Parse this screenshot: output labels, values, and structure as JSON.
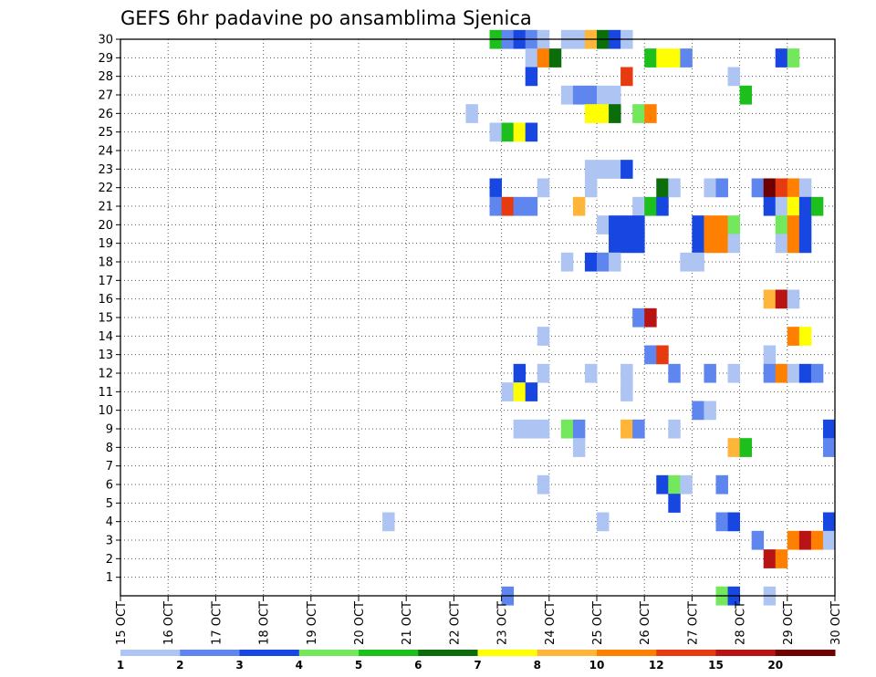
{
  "chart_data": {
    "type": "heatmap",
    "title": "GEFS 6hr padavine po ansamblima Sjenica",
    "x_labels": [
      "15 OCT",
      "16 OCT",
      "17 OCT",
      "18 OCT",
      "19 OCT",
      "20 OCT",
      "21 OCT",
      "22 OCT",
      "23 OCT",
      "24 OCT",
      "25 OCT",
      "26 OCT",
      "27 OCT",
      "28 OCT",
      "29 OCT",
      "30 OCT"
    ],
    "x_range": [
      "15 OCT",
      "30 OCT"
    ],
    "x_step_hours": 6,
    "y_labels": [
      "1",
      "2",
      "3",
      "4",
      "5",
      "6",
      "7",
      "8",
      "9",
      "10",
      "11",
      "12",
      "13",
      "14",
      "15",
      "16",
      "17",
      "18",
      "19",
      "20",
      "21",
      "22",
      "23",
      "24",
      "25",
      "26",
      "27",
      "28",
      "29",
      "30"
    ],
    "y_range": [
      0,
      30
    ],
    "grid": true,
    "legend_position": "bottom",
    "colorbar": {
      "labels": [
        "1",
        "2",
        "3",
        "4",
        "5",
        "6",
        "7",
        "8",
        "10",
        "12",
        "15",
        "20"
      ],
      "colors": [
        "#aec4f2",
        "#5f86ee",
        "#1747e0",
        "#74e85c",
        "#1dbf1d",
        "#0b6e0b",
        "#ffff00",
        "#ffb43a",
        "#ff7f00",
        "#e63b10",
        "#b81414",
        "#6e0000"
      ]
    },
    "cells": [
      {
        "m": 30,
        "t": "22 OCT 18Z",
        "v": 5
      },
      {
        "m": 30,
        "t": "23 OCT 00Z",
        "v": 2
      },
      {
        "m": 30,
        "t": "23 OCT 06Z",
        "v": 3
      },
      {
        "m": 30,
        "t": "23 OCT 12Z",
        "v": 2
      },
      {
        "m": 30,
        "t": "23 OCT 18Z",
        "v": 1
      },
      {
        "m": 30,
        "t": "24 OCT 06Z",
        "v": 1
      },
      {
        "m": 30,
        "t": "24 OCT 12Z",
        "v": 1
      },
      {
        "m": 30,
        "t": "24 OCT 18Z",
        "v": 8
      },
      {
        "m": 30,
        "t": "25 OCT 00Z",
        "v": 6
      },
      {
        "m": 30,
        "t": "25 OCT 06Z",
        "v": 3
      },
      {
        "m": 30,
        "t": "25 OCT 12Z",
        "v": 1
      },
      {
        "m": 29,
        "t": "23 OCT 12Z",
        "v": 1
      },
      {
        "m": 29,
        "t": "23 OCT 18Z",
        "v": 10
      },
      {
        "m": 29,
        "t": "24 OCT 00Z",
        "v": 6
      },
      {
        "m": 29,
        "t": "26 OCT 00Z",
        "v": 5
      },
      {
        "m": 29,
        "t": "26 OCT 06Z",
        "v": 7
      },
      {
        "m": 29,
        "t": "26 OCT 12Z",
        "v": 7
      },
      {
        "m": 29,
        "t": "26 OCT 18Z",
        "v": 2
      },
      {
        "m": 29,
        "t": "28 OCT 18Z",
        "v": 3
      },
      {
        "m": 29,
        "t": "29 OCT 00Z",
        "v": 4
      },
      {
        "m": 28,
        "t": "23 OCT 12Z",
        "v": 3
      },
      {
        "m": 28,
        "t": "25 OCT 12Z",
        "v": 12
      },
      {
        "m": 28,
        "t": "27 OCT 18Z",
        "v": 1
      },
      {
        "m": 27,
        "t": "24 OCT 06Z",
        "v": 1
      },
      {
        "m": 27,
        "t": "24 OCT 12Z",
        "v": 2
      },
      {
        "m": 27,
        "t": "24 OCT 18Z",
        "v": 2
      },
      {
        "m": 27,
        "t": "25 OCT 00Z",
        "v": 1
      },
      {
        "m": 27,
        "t": "25 OCT 06Z",
        "v": 1
      },
      {
        "m": 27,
        "t": "28 OCT 00Z",
        "v": 5
      },
      {
        "m": 26,
        "t": "22 OCT 06Z",
        "v": 1
      },
      {
        "m": 26,
        "t": "24 OCT 18Z",
        "v": 7
      },
      {
        "m": 26,
        "t": "25 OCT 00Z",
        "v": 7
      },
      {
        "m": 26,
        "t": "25 OCT 06Z",
        "v": 6
      },
      {
        "m": 26,
        "t": "25 OCT 18Z",
        "v": 4
      },
      {
        "m": 26,
        "t": "26 OCT 00Z",
        "v": 10
      },
      {
        "m": 25,
        "t": "22 OCT 18Z",
        "v": 1
      },
      {
        "m": 25,
        "t": "23 OCT 00Z",
        "v": 5
      },
      {
        "m": 25,
        "t": "23 OCT 06Z",
        "v": 7
      },
      {
        "m": 25,
        "t": "23 OCT 12Z",
        "v": 3
      },
      {
        "m": 23,
        "t": "24 OCT 18Z",
        "v": 1
      },
      {
        "m": 23,
        "t": "25 OCT 00Z",
        "v": 1
      },
      {
        "m": 23,
        "t": "25 OCT 06Z",
        "v": 1
      },
      {
        "m": 23,
        "t": "25 OCT 12Z",
        "v": 3
      },
      {
        "m": 22,
        "t": "22 OCT 18Z",
        "v": 3
      },
      {
        "m": 22,
        "t": "23 OCT 18Z",
        "v": 1
      },
      {
        "m": 22,
        "t": "24 OCT 18Z",
        "v": 1
      },
      {
        "m": 22,
        "t": "26 OCT 06Z",
        "v": 6
      },
      {
        "m": 22,
        "t": "26 OCT 12Z",
        "v": 1
      },
      {
        "m": 22,
        "t": "27 OCT 06Z",
        "v": 1
      },
      {
        "m": 22,
        "t": "27 OCT 12Z",
        "v": 2
      },
      {
        "m": 22,
        "t": "28 OCT 06Z",
        "v": 2
      },
      {
        "m": 22,
        "t": "28 OCT 12Z",
        "v": 20
      },
      {
        "m": 22,
        "t": "28 OCT 18Z",
        "v": 12
      },
      {
        "m": 22,
        "t": "29 OCT 00Z",
        "v": 10
      },
      {
        "m": 22,
        "t": "29 OCT 06Z",
        "v": 1
      },
      {
        "m": 21,
        "t": "22 OCT 18Z",
        "v": 2
      },
      {
        "m": 21,
        "t": "23 OCT 00Z",
        "v": 12
      },
      {
        "m": 21,
        "t": "23 OCT 06Z",
        "v": 2
      },
      {
        "m": 21,
        "t": "23 OCT 12Z",
        "v": 2
      },
      {
        "m": 21,
        "t": "24 OCT 12Z",
        "v": 8
      },
      {
        "m": 21,
        "t": "25 OCT 18Z",
        "v": 1
      },
      {
        "m": 21,
        "t": "26 OCT 00Z",
        "v": 5
      },
      {
        "m": 21,
        "t": "26 OCT 06Z",
        "v": 3
      },
      {
        "m": 21,
        "t": "28 OCT 12Z",
        "v": 3
      },
      {
        "m": 21,
        "t": "28 OCT 18Z",
        "v": 1
      },
      {
        "m": 21,
        "t": "29 OCT 00Z",
        "v": 7
      },
      {
        "m": 21,
        "t": "29 OCT 06Z",
        "v": 3
      },
      {
        "m": 21,
        "t": "29 OCT 12Z",
        "v": 5
      },
      {
        "m": 20,
        "t": "25 OCT 00Z",
        "v": 1
      },
      {
        "m": 20,
        "t": "25 OCT 06Z",
        "v": 3
      },
      {
        "m": 20,
        "t": "25 OCT 12Z",
        "v": 3
      },
      {
        "m": 20,
        "t": "25 OCT 18Z",
        "v": 3
      },
      {
        "m": 20,
        "t": "27 OCT 00Z",
        "v": 3
      },
      {
        "m": 20,
        "t": "27 OCT 06Z",
        "v": 10
      },
      {
        "m": 20,
        "t": "27 OCT 12Z",
        "v": 10
      },
      {
        "m": 20,
        "t": "27 OCT 18Z",
        "v": 4
      },
      {
        "m": 20,
        "t": "28 OCT 18Z",
        "v": 4
      },
      {
        "m": 20,
        "t": "29 OCT 00Z",
        "v": 10
      },
      {
        "m": 20,
        "t": "29 OCT 06Z",
        "v": 3
      },
      {
        "m": 19,
        "t": "25 OCT 06Z",
        "v": 3
      },
      {
        "m": 19,
        "t": "25 OCT 12Z",
        "v": 3
      },
      {
        "m": 19,
        "t": "25 OCT 18Z",
        "v": 3
      },
      {
        "m": 19,
        "t": "27 OCT 00Z",
        "v": 3
      },
      {
        "m": 19,
        "t": "27 OCT 06Z",
        "v": 10
      },
      {
        "m": 19,
        "t": "27 OCT 12Z",
        "v": 10
      },
      {
        "m": 19,
        "t": "27 OCT 18Z",
        "v": 1
      },
      {
        "m": 19,
        "t": "28 OCT 18Z",
        "v": 1
      },
      {
        "m": 19,
        "t": "29 OCT 00Z",
        "v": 10
      },
      {
        "m": 19,
        "t": "29 OCT 06Z",
        "v": 3
      },
      {
        "m": 18,
        "t": "24 OCT 06Z",
        "v": 1
      },
      {
        "m": 18,
        "t": "24 OCT 18Z",
        "v": 3
      },
      {
        "m": 18,
        "t": "25 OCT 00Z",
        "v": 2
      },
      {
        "m": 18,
        "t": "25 OCT 06Z",
        "v": 1
      },
      {
        "m": 18,
        "t": "26 OCT 18Z",
        "v": 1
      },
      {
        "m": 18,
        "t": "27 OCT 00Z",
        "v": 1
      },
      {
        "m": 16,
        "t": "28 OCT 12Z",
        "v": 8
      },
      {
        "m": 16,
        "t": "28 OCT 18Z",
        "v": 15
      },
      {
        "m": 16,
        "t": "29 OCT 00Z",
        "v": 1
      },
      {
        "m": 15,
        "t": "25 OCT 18Z",
        "v": 2
      },
      {
        "m": 15,
        "t": "26 OCT 00Z",
        "v": 15
      },
      {
        "m": 14,
        "t": "23 OCT 18Z",
        "v": 1
      },
      {
        "m": 14,
        "t": "29 OCT 00Z",
        "v": 10
      },
      {
        "m": 14,
        "t": "29 OCT 06Z",
        "v": 7
      },
      {
        "m": 13,
        "t": "26 OCT 00Z",
        "v": 2
      },
      {
        "m": 13,
        "t": "26 OCT 06Z",
        "v": 12
      },
      {
        "m": 13,
        "t": "28 OCT 12Z",
        "v": 1
      },
      {
        "m": 12,
        "t": "23 OCT 06Z",
        "v": 3
      },
      {
        "m": 12,
        "t": "23 OCT 18Z",
        "v": 1
      },
      {
        "m": 12,
        "t": "24 OCT 18Z",
        "v": 1
      },
      {
        "m": 12,
        "t": "25 OCT 12Z",
        "v": 1
      },
      {
        "m": 12,
        "t": "26 OCT 12Z",
        "v": 2
      },
      {
        "m": 12,
        "t": "27 OCT 06Z",
        "v": 2
      },
      {
        "m": 12,
        "t": "27 OCT 18Z",
        "v": 1
      },
      {
        "m": 12,
        "t": "28 OCT 12Z",
        "v": 2
      },
      {
        "m": 12,
        "t": "28 OCT 18Z",
        "v": 10
      },
      {
        "m": 12,
        "t": "29 OCT 00Z",
        "v": 1
      },
      {
        "m": 12,
        "t": "29 OCT 06Z",
        "v": 3
      },
      {
        "m": 12,
        "t": "29 OCT 12Z",
        "v": 2
      },
      {
        "m": 11,
        "t": "23 OCT 00Z",
        "v": 1
      },
      {
        "m": 11,
        "t": "23 OCT 06Z",
        "v": 7
      },
      {
        "m": 11,
        "t": "23 OCT 12Z",
        "v": 3
      },
      {
        "m": 11,
        "t": "25 OCT 12Z",
        "v": 1
      },
      {
        "m": 10,
        "t": "27 OCT 00Z",
        "v": 2
      },
      {
        "m": 10,
        "t": "27 OCT 06Z",
        "v": 1
      },
      {
        "m": 9,
        "t": "23 OCT 06Z",
        "v": 1
      },
      {
        "m": 9,
        "t": "23 OCT 12Z",
        "v": 1
      },
      {
        "m": 9,
        "t": "23 OCT 18Z",
        "v": 1
      },
      {
        "m": 9,
        "t": "24 OCT 06Z",
        "v": 4
      },
      {
        "m": 9,
        "t": "24 OCT 12Z",
        "v": 2
      },
      {
        "m": 9,
        "t": "25 OCT 12Z",
        "v": 8
      },
      {
        "m": 9,
        "t": "25 OCT 18Z",
        "v": 2
      },
      {
        "m": 9,
        "t": "26 OCT 12Z",
        "v": 1
      },
      {
        "m": 9,
        "t": "29 OCT 18Z",
        "v": 3
      },
      {
        "m": 8,
        "t": "24 OCT 12Z",
        "v": 1
      },
      {
        "m": 8,
        "t": "27 OCT 18Z",
        "v": 8
      },
      {
        "m": 8,
        "t": "28 OCT 00Z",
        "v": 5
      },
      {
        "m": 8,
        "t": "29 OCT 18Z",
        "v": 2
      },
      {
        "m": 6,
        "t": "23 OCT 18Z",
        "v": 1
      },
      {
        "m": 6,
        "t": "26 OCT 06Z",
        "v": 3
      },
      {
        "m": 6,
        "t": "26 OCT 12Z",
        "v": 4
      },
      {
        "m": 6,
        "t": "26 OCT 18Z",
        "v": 1
      },
      {
        "m": 6,
        "t": "27 OCT 12Z",
        "v": 2
      },
      {
        "m": 5,
        "t": "26 OCT 12Z",
        "v": 3
      },
      {
        "m": 4,
        "t": "20 OCT 12Z",
        "v": 1
      },
      {
        "m": 4,
        "t": "25 OCT 00Z",
        "v": 1
      },
      {
        "m": 4,
        "t": "27 OCT 12Z",
        "v": 2
      },
      {
        "m": 4,
        "t": "27 OCT 18Z",
        "v": 3
      },
      {
        "m": 4,
        "t": "29 OCT 18Z",
        "v": 3
      },
      {
        "m": 3,
        "t": "28 OCT 06Z",
        "v": 2
      },
      {
        "m": 3,
        "t": "29 OCT 00Z",
        "v": 10
      },
      {
        "m": 3,
        "t": "29 OCT 06Z",
        "v": 15
      },
      {
        "m": 3,
        "t": "29 OCT 12Z",
        "v": 10
      },
      {
        "m": 3,
        "t": "29 OCT 18Z",
        "v": 1
      },
      {
        "m": 2,
        "t": "28 OCT 12Z",
        "v": 15
      },
      {
        "m": 2,
        "t": "28 OCT 18Z",
        "v": 10
      },
      {
        "m": 0,
        "t": "23 OCT 00Z",
        "v": 2
      },
      {
        "m": 0,
        "t": "27 OCT 12Z",
        "v": 4
      },
      {
        "m": 0,
        "t": "27 OCT 18Z",
        "v": 3
      },
      {
        "m": 0,
        "t": "28 OCT 12Z",
        "v": 1
      }
    ]
  }
}
